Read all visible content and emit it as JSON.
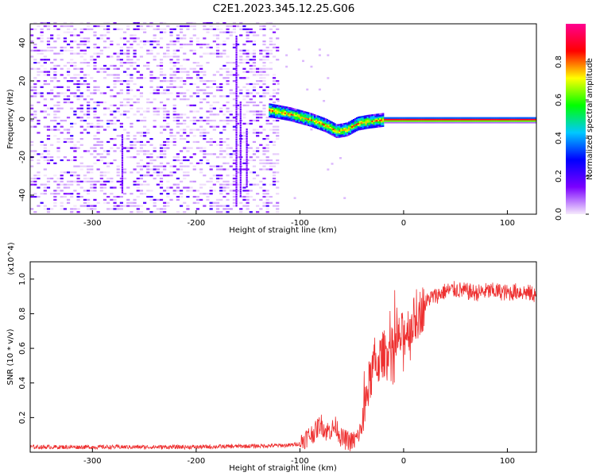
{
  "title": "C2E1.2023.345.12.25.G06",
  "chart_data": [
    {
      "type": "heatmap",
      "xlabel": "Height of straight line (km)",
      "ylabel": "Frequency (Hz)",
      "xlim": [
        -360,
        128
      ],
      "ylim": [
        -50,
        50
      ],
      "xticks": [
        -300,
        -200,
        -100,
        0,
        100
      ],
      "yticks": [
        -40,
        -20,
        0,
        20,
        40
      ],
      "colorbar": {
        "label": "Normalized spectral amplitude",
        "range": [
          0,
          1
        ],
        "ticks": [
          0.0,
          0.2,
          0.4,
          0.6,
          0.8
        ],
        "colormap": [
          "#f6eafc",
          "#7b00ff",
          "#0000ff",
          "#00c8ff",
          "#00ff00",
          "#ffff00",
          "#ff0000",
          "#ff0090"
        ]
      },
      "features": {
        "noise_region_x": [
          -360,
          -122
        ],
        "signal_start_x": -130,
        "signal_track": [
          [
            -130,
            5
          ],
          [
            -110,
            3
          ],
          [
            -90,
            0
          ],
          [
            -75,
            -3
          ],
          [
            -65,
            -6
          ],
          [
            -55,
            -5
          ],
          [
            -45,
            -2
          ],
          [
            -35,
            -1
          ],
          [
            -20,
            0
          ],
          [
            0,
            0
          ],
          [
            128,
            0
          ]
        ]
      },
      "grid": false
    },
    {
      "type": "line",
      "xlabel": "Height of straight line (km)",
      "ylabel": "SNR (10 * v/v)",
      "y_multiplier": "(x10^4)",
      "xlim": [
        -360,
        128
      ],
      "ylim": [
        0,
        1.1
      ],
      "xticks": [
        -300,
        -200,
        -100,
        0,
        100
      ],
      "yticks": [
        0.2,
        0.4,
        0.6,
        0.8,
        1.0
      ],
      "series": [
        {
          "color": "#ee3030",
          "points": [
            [
              -360,
              0.03
            ],
            [
              -300,
              0.03
            ],
            [
              -250,
              0.03
            ],
            [
              -200,
              0.03
            ],
            [
              -150,
              0.035
            ],
            [
              -110,
              0.04
            ],
            [
              -100,
              0.05
            ],
            [
              -95,
              0.08
            ],
            [
              -85,
              0.12
            ],
            [
              -80,
              0.17
            ],
            [
              -75,
              0.12
            ],
            [
              -70,
              0.13
            ],
            [
              -65,
              0.15
            ],
            [
              -60,
              0.08
            ],
            [
              -50,
              0.06
            ],
            [
              -45,
              0.08
            ],
            [
              -40,
              0.15
            ],
            [
              -35,
              0.35
            ],
            [
              -30,
              0.48
            ],
            [
              -25,
              0.52
            ],
            [
              -20,
              0.56
            ],
            [
              -15,
              0.6
            ],
            [
              -10,
              0.58
            ],
            [
              -5,
              0.65
            ],
            [
              0,
              0.68
            ],
            [
              5,
              0.72
            ],
            [
              10,
              0.76
            ],
            [
              15,
              0.8
            ],
            [
              20,
              0.85
            ],
            [
              25,
              0.89
            ],
            [
              30,
              0.9
            ],
            [
              40,
              0.93
            ],
            [
              50,
              0.94
            ],
            [
              60,
              0.93
            ],
            [
              70,
              0.92
            ],
            [
              80,
              0.93
            ],
            [
              90,
              0.93
            ],
            [
              100,
              0.92
            ],
            [
              110,
              0.93
            ],
            [
              120,
              0.92
            ],
            [
              128,
              0.91
            ]
          ]
        }
      ],
      "grid": false
    }
  ]
}
